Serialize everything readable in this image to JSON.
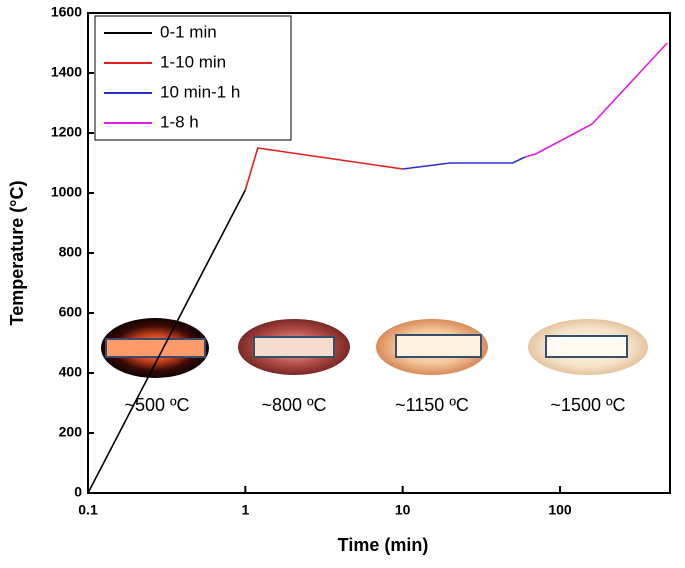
{
  "chart_data": {
    "type": "line",
    "xlabel": "Time (min)",
    "ylabel": "Temperature (°C)",
    "xscale": "log",
    "xlim": [
      0.1,
      500
    ],
    "ylim": [
      0,
      1600
    ],
    "xticks": [
      0.1,
      1,
      10,
      100
    ],
    "yticks": [
      0,
      200,
      400,
      600,
      800,
      1000,
      1200,
      1400,
      1600
    ],
    "legend": "upper left",
    "series": [
      {
        "name": "0-1 min",
        "color": "#000000",
        "x": [
          0.1,
          1
        ],
        "values": [
          0,
          1010
        ]
      },
      {
        "name": "1-10 min",
        "color": "#e0201b",
        "x": [
          1,
          1.2,
          10
        ],
        "values": [
          1010,
          1150,
          1080
        ]
      },
      {
        "name": "10 min-1 h",
        "color": "#2d2fd0",
        "x": [
          10,
          20,
          50,
          60
        ],
        "values": [
          1080,
          1100,
          1100,
          1120
        ]
      },
      {
        "name": "1-8 h",
        "color": "#e21be8",
        "x": [
          60,
          70,
          160,
          480
        ],
        "values": [
          1120,
          1130,
          1230,
          1500
        ]
      }
    ],
    "annotations": [
      "~500 ºC",
      "~800 ºC",
      "~1150 ºC",
      "~1500 ºC"
    ]
  }
}
